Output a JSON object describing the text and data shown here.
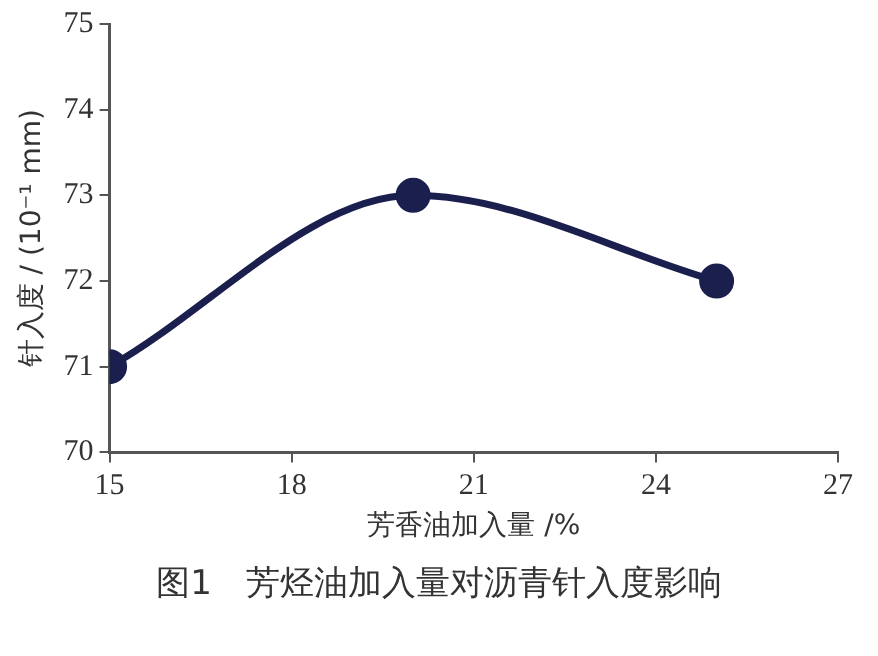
{
  "chart_data": {
    "type": "line",
    "title": "图1　芳烃油加入量对沥青针入度影响",
    "xlabel": "芳香油加入量 /%",
    "ylabel": "针入度 / (10⁻¹ mm)",
    "x": [
      15,
      20,
      25
    ],
    "series": [
      {
        "color": "#1b1f4d",
        "values": [
          71,
          73,
          72
        ]
      }
    ],
    "xlim": [
      15,
      27
    ],
    "xticks": [
      15,
      18,
      21,
      24,
      27
    ],
    "ylim": [
      70,
      75
    ],
    "yticks": [
      70,
      71,
      72,
      73,
      74,
      75
    ],
    "grid": false,
    "legend": false,
    "marker": "circle",
    "line_style": "solid"
  }
}
